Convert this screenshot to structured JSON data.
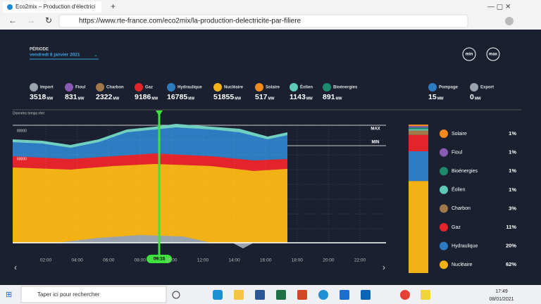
{
  "browser": {
    "tab_title": "Eco2mix – Production d'électrici",
    "url": "https://www.rte-france.com/eco2mix/la-production-delectricite-par-filiere"
  },
  "header": {
    "periode_label": "PÉRIODE",
    "date": "vendredi 8 janvier 2021",
    "min_button": "min",
    "max_button": "max"
  },
  "sources": [
    {
      "name": "Import",
      "value": 3518,
      "unit": "MW",
      "color": "#9aa3ad"
    },
    {
      "name": "Fioul",
      "value": 831,
      "unit": "MW",
      "color": "#8a5bb4"
    },
    {
      "name": "Charbon",
      "value": 2322,
      "unit": "MW",
      "color": "#a0784a"
    },
    {
      "name": "Gaz",
      "value": 9186,
      "unit": "MW",
      "color": "#e4242b"
    },
    {
      "name": "Hydraulique",
      "value": 16785,
      "unit": "MW",
      "color": "#2d7bc0"
    },
    {
      "name": "Nucléaire",
      "value": 51855,
      "unit": "MW",
      "color": "#f2b114"
    },
    {
      "name": "Solaire",
      "value": 517,
      "unit": "MW",
      "color": "#f08a1c"
    },
    {
      "name": "Éolien",
      "value": 1143,
      "unit": "MW",
      "color": "#5ec9b8"
    },
    {
      "name": "Bioénergies",
      "value": 891,
      "unit": "MW",
      "color": "#1d8a6c"
    }
  ],
  "exchanges": [
    {
      "name": "Pompage",
      "value": 15,
      "unit": "MW",
      "color": "#2d7bc0"
    },
    {
      "name": "Export",
      "value": 0,
      "unit": "MW",
      "color": "#9aa3ad"
    }
  ],
  "chart": {
    "note": "Données temps réel",
    "y_labels": [
      "80000",
      "60000"
    ],
    "max_label": "MAX",
    "min_label": "MIN",
    "cursor_time": "09:15",
    "x_labels": [
      "02:00",
      "04:00",
      "06:00",
      "08:00",
      "10:00",
      "12:00",
      "14:00",
      "16:00",
      "18:00",
      "20:00",
      "22:00"
    ]
  },
  "breakdown": [
    {
      "name": "Solaire",
      "share": "1%",
      "color": "#f08a1c"
    },
    {
      "name": "Fioul",
      "share": "1%",
      "color": "#8a5bb4"
    },
    {
      "name": "Bioénergies",
      "share": "1%",
      "color": "#1d8a6c"
    },
    {
      "name": "Éolien",
      "share": "1%",
      "color": "#5ec9b8"
    },
    {
      "name": "Charbon",
      "share": "3%",
      "color": "#a0784a"
    },
    {
      "name": "Gaz",
      "share": "11%",
      "color": "#e4242b"
    },
    {
      "name": "Hydraulique",
      "share": "20%",
      "color": "#2d7bc0"
    },
    {
      "name": "Nucléaire",
      "share": "62%",
      "color": "#f2b114"
    }
  ],
  "taskbar": {
    "search": "Taper ici pour rechercher",
    "time": "17:49",
    "date": "08/01/2021"
  }
}
